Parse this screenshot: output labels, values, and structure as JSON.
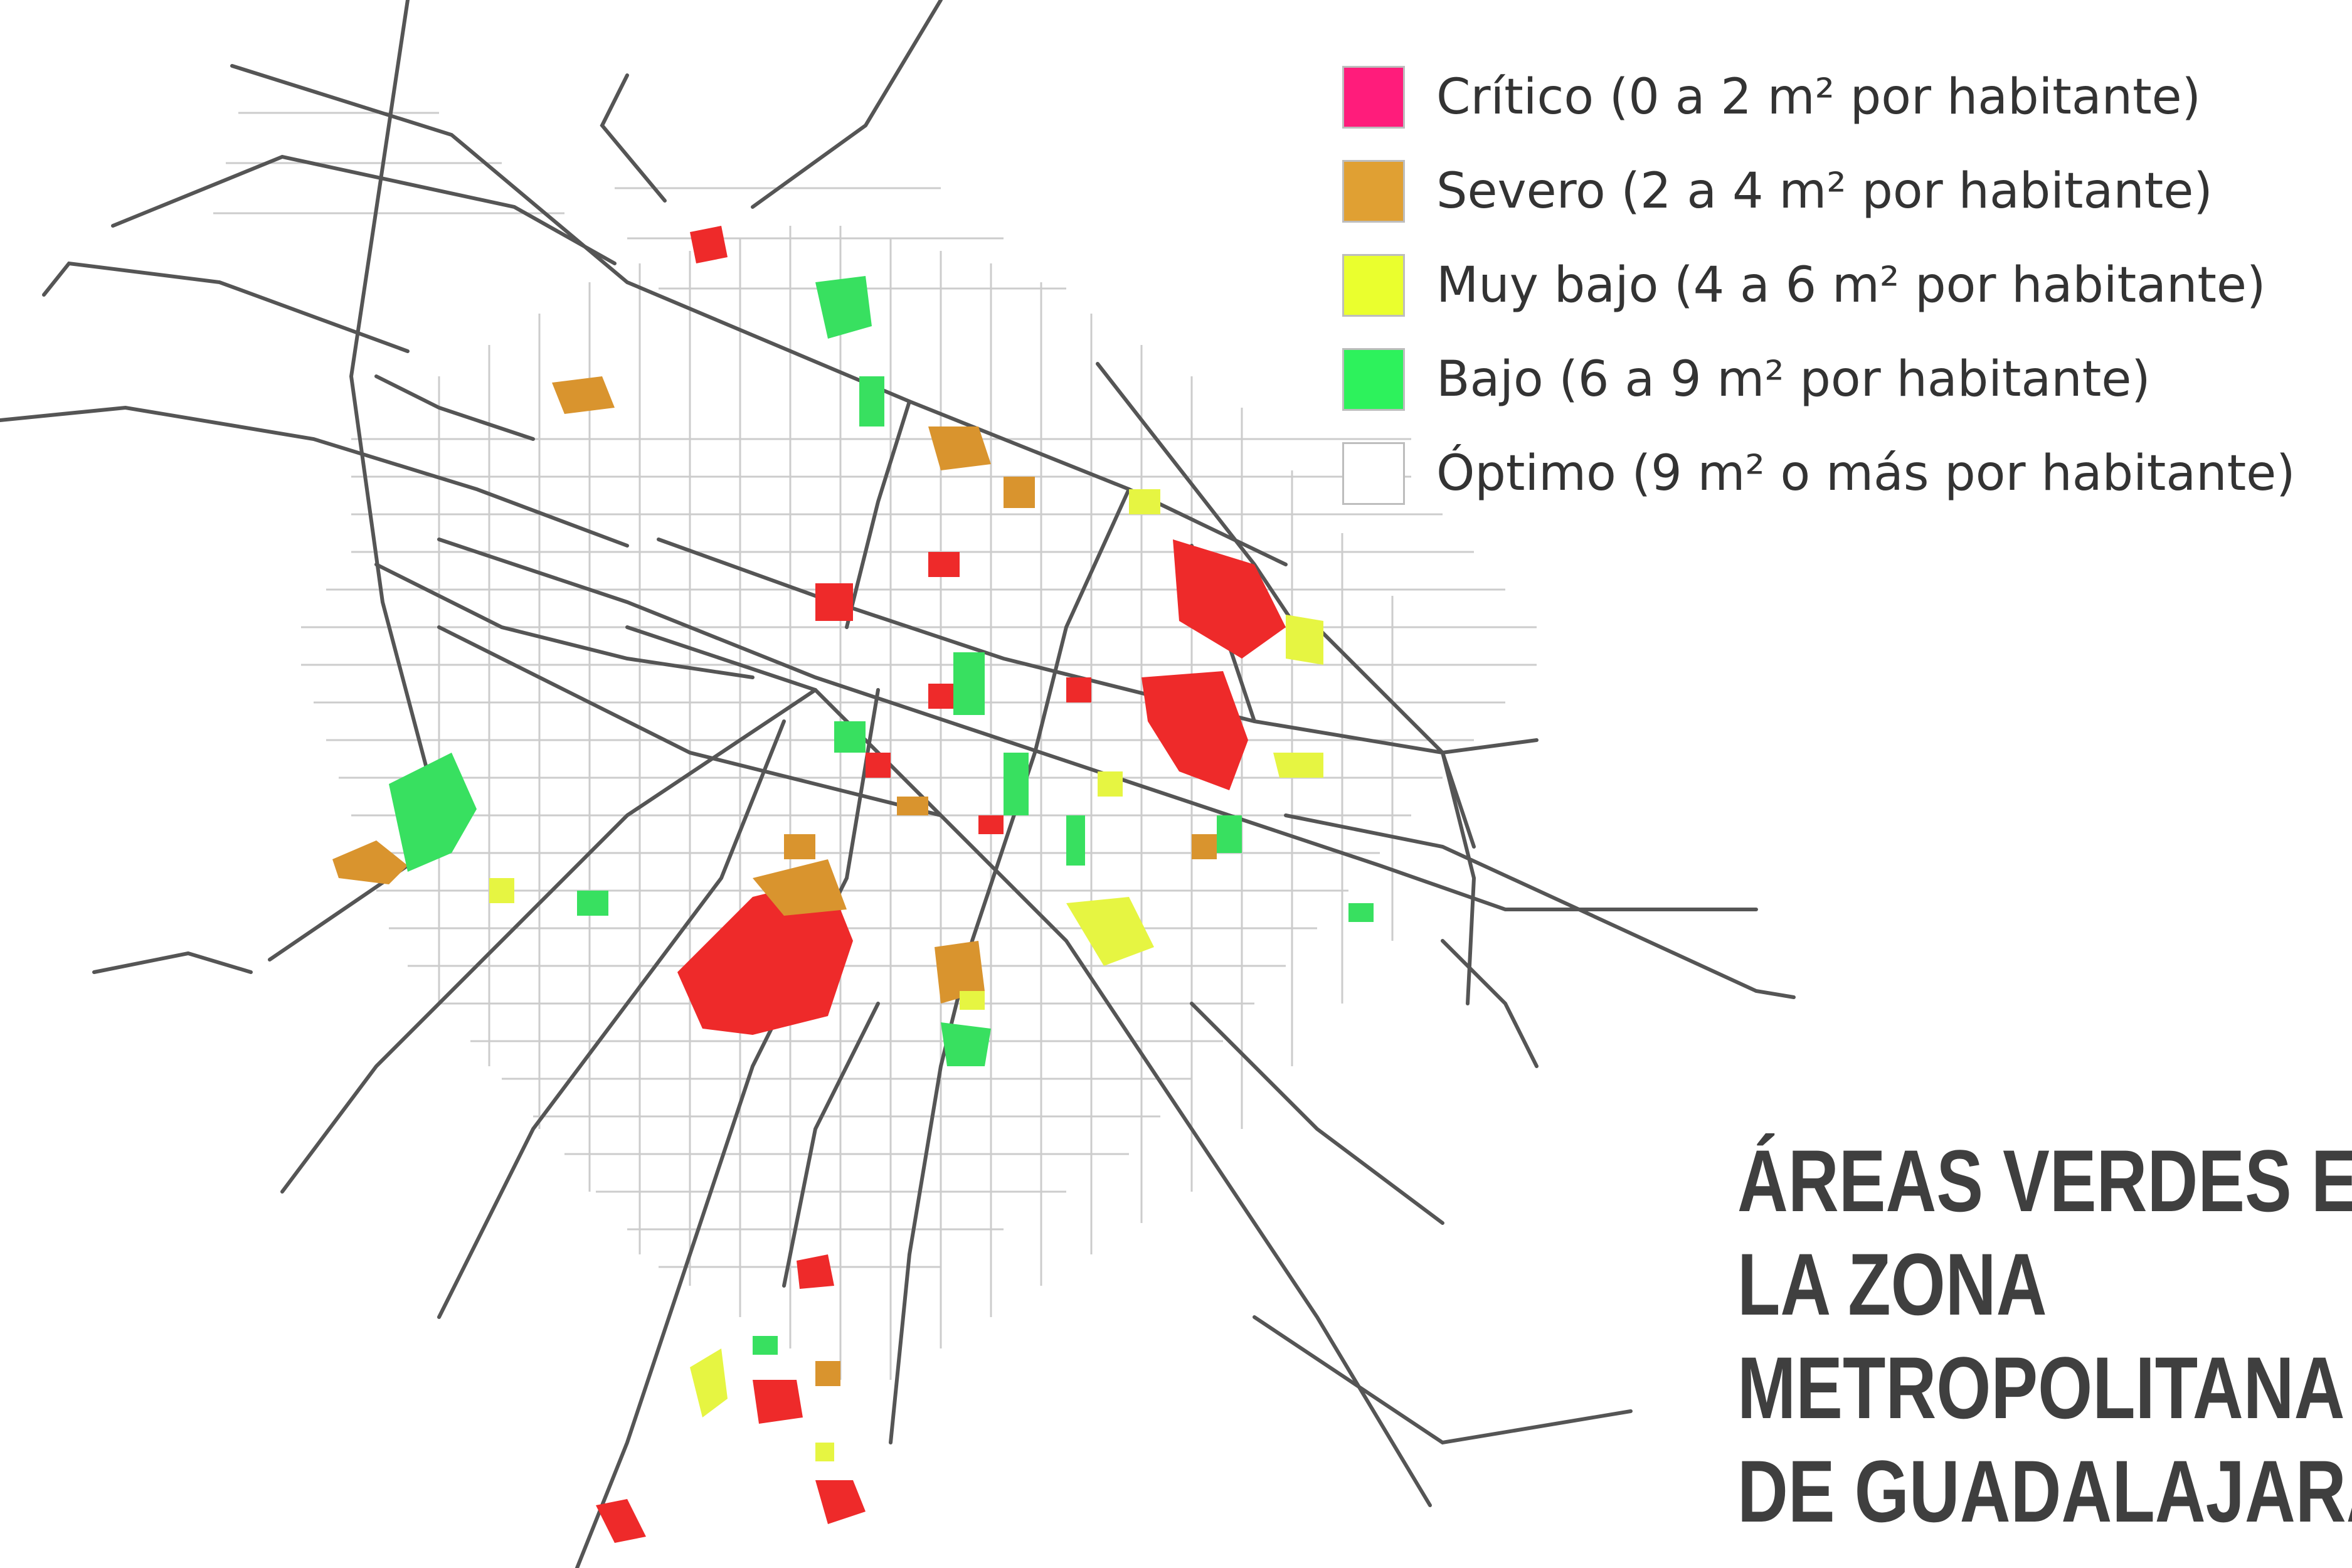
{
  "legend": {
    "items": [
      {
        "key": "critico",
        "label": "Crítico (0 a 2 m² por habitante)",
        "color": "#ff1c7b"
      },
      {
        "key": "severo",
        "label": "Severo (2 a 4 m² por habitante)",
        "color": "#e0a033"
      },
      {
        "key": "muy_bajo",
        "label": "Muy bajo (4 a 6 m² por habitante)",
        "color": "#eaff2e"
      },
      {
        "key": "bajo",
        "label": "Bajo (6 a 9 m² por habitante)",
        "color": "#2df25c"
      },
      {
        "key": "optimo",
        "label": "Óptimo (9 m² o más por habitante)",
        "color": "#ffffff"
      }
    ]
  },
  "title": {
    "line1": "ÁREAS VERDES EN",
    "line2": "LA ZONA",
    "line3": "METROPOLITANA",
    "line4": "DE GUADALAJARA"
  },
  "map_colors": {
    "road": "#555555",
    "street": "#c9c9c9",
    "critico_map": "#ee2a2a",
    "severo_map": "#d9942e",
    "muy_bajo_map": "#e6f542",
    "bajo_map": "#38e060"
  }
}
